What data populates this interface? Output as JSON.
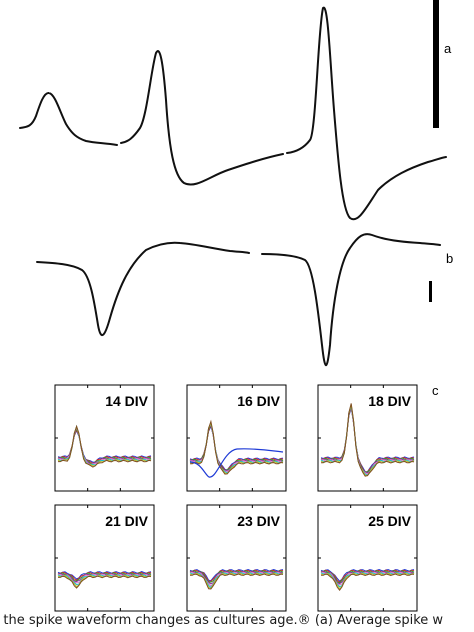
{
  "labels": {
    "a": "a",
    "b": "b",
    "c": "c"
  },
  "panels": [
    {
      "title": "14 DIV"
    },
    {
      "title": "16 DIV"
    },
    {
      "title": "18 DIV"
    },
    {
      "title": "21 DIV"
    },
    {
      "title": "23 DIV"
    },
    {
      "title": "25 DIV"
    }
  ],
  "caption": "g the spike waveform changes as cultures age.® (a) Average spike w",
  "trace_colors": [
    "#1f3bd6",
    "#d62728",
    "#2ca02c",
    "#8c2d9e",
    "#e377c2",
    "#17becf",
    "#bcbd22",
    "#7f4f24",
    "#ff7f0e",
    "#000000"
  ]
}
